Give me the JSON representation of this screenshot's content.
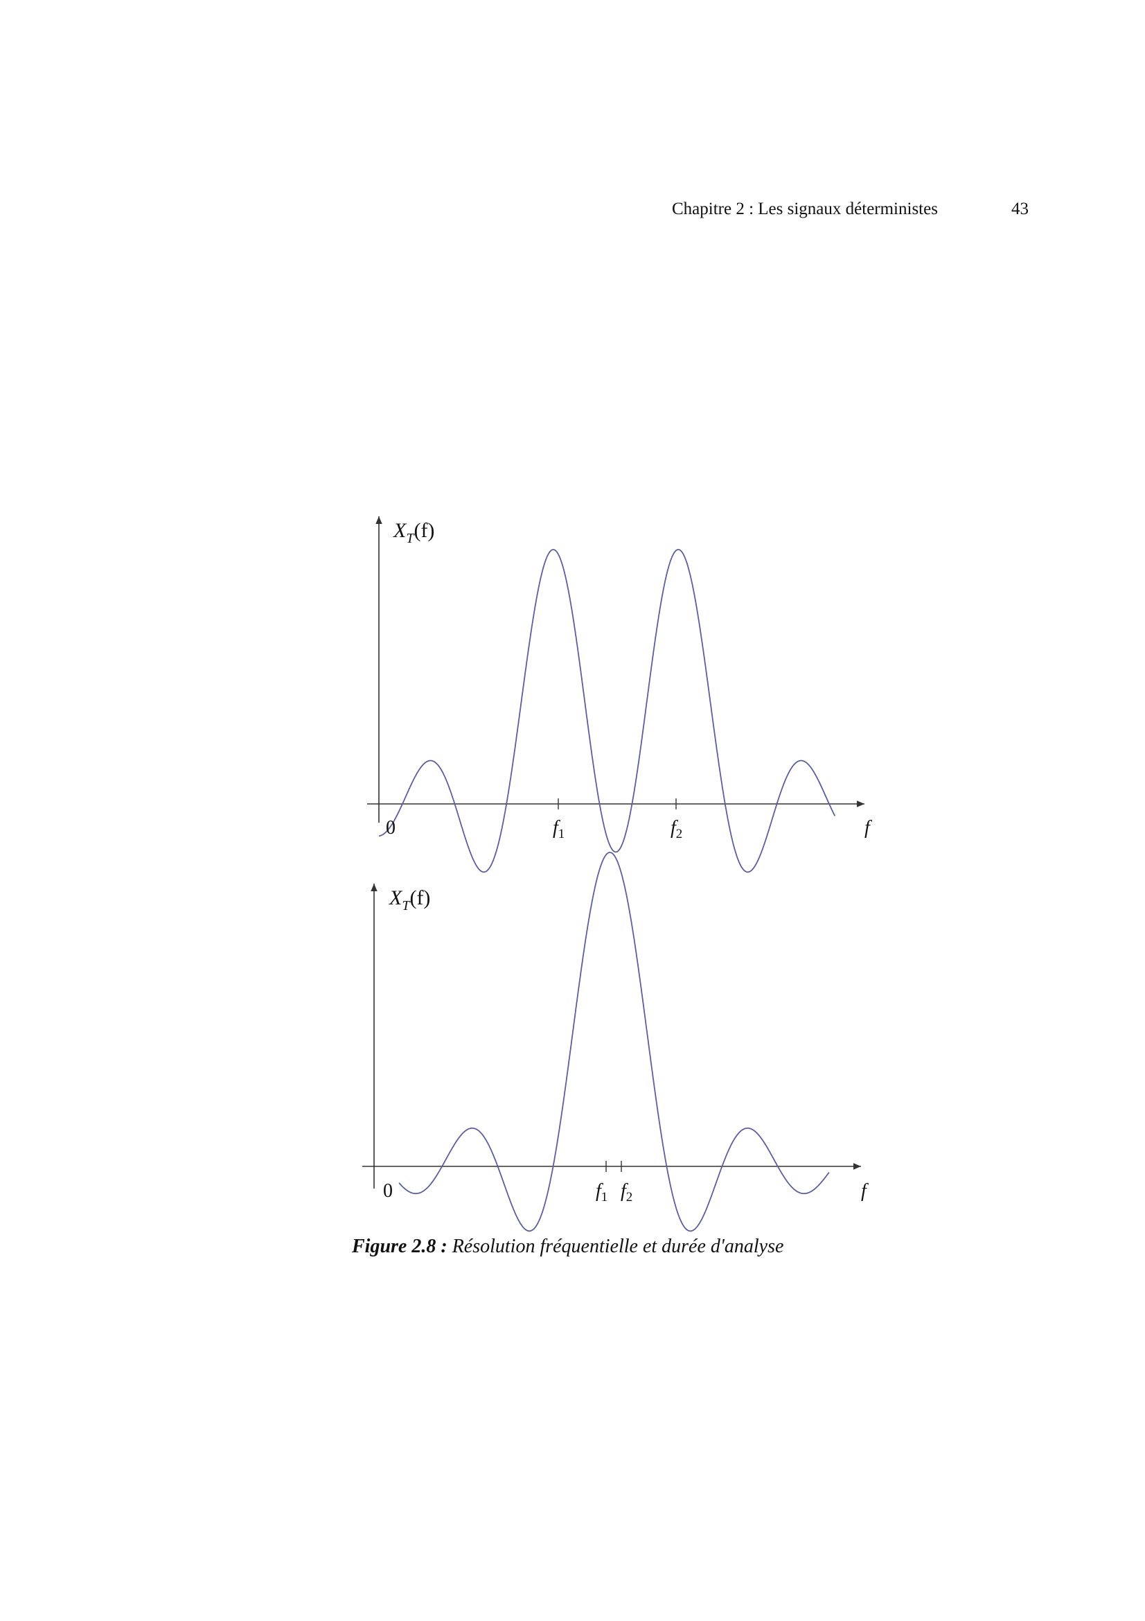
{
  "header": {
    "running_title": "Chapitre 2 : Les signaux déterministes",
    "page_number": "43"
  },
  "figure": {
    "caption_label": "Figure 2.8 :",
    "caption_text": "Résolution fréquentielle et durée d'analyse"
  },
  "colors": {
    "curve": "#5b5fa0",
    "axes": "#333333"
  },
  "chart_data": [
    {
      "type": "line",
      "ylabel_main": "X",
      "ylabel_sub": "T",
      "ylabel_rest": "(f)",
      "xlabel": "f",
      "tick_labels": [
        {
          "text": "0",
          "sub": ""
        },
        {
          "text": "f",
          "sub": "1"
        },
        {
          "text": "f",
          "sub": "2"
        }
      ],
      "f1": 3,
      "f2": 5,
      "B": 1.12,
      "xlim": [
        0,
        8
      ],
      "ylim": [
        -0.25,
        1.0
      ],
      "grid": false
    },
    {
      "type": "line",
      "ylabel_main": "X",
      "ylabel_sub": "T",
      "ylabel_rest": "(f)",
      "xlabel": "f",
      "tick_labels": [
        {
          "text": "0",
          "sub": ""
        },
        {
          "text": "f",
          "sub": "1"
        },
        {
          "text": "f",
          "sub": "2"
        }
      ],
      "f1": 3.85,
      "f2": 4.1,
      "B": 1.0,
      "xlim": [
        0,
        8
      ],
      "ylim": [
        -0.12,
        1.0
      ],
      "grid": false
    }
  ]
}
